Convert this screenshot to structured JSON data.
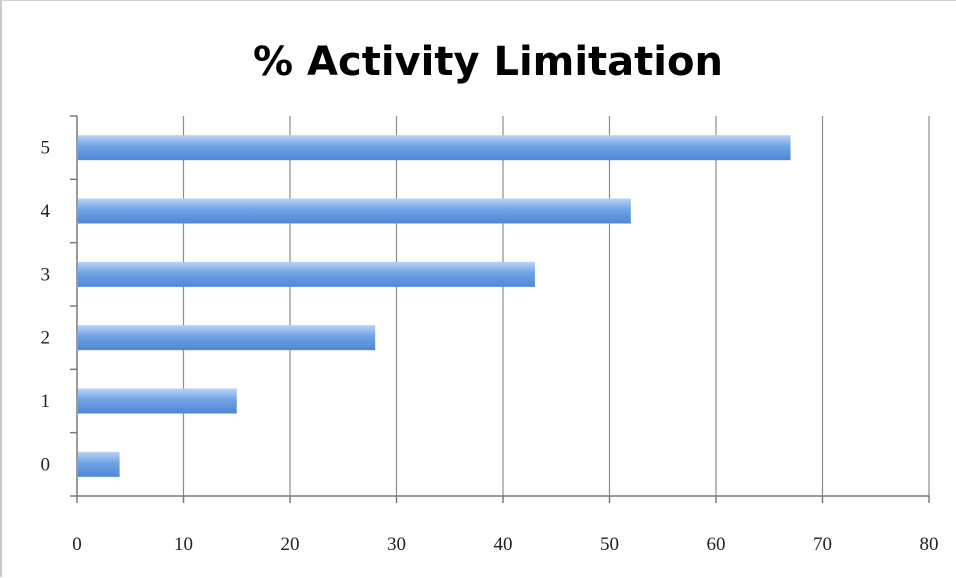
{
  "chart_data": {
    "type": "bar",
    "orientation": "horizontal",
    "title": "% Activity Limitation",
    "xlabel": "",
    "ylabel": "",
    "categories": [
      "0",
      "1",
      "2",
      "3",
      "4",
      "5"
    ],
    "values": [
      4,
      15,
      28,
      43,
      52,
      67
    ],
    "xlim": [
      0,
      80
    ],
    "xticks": [
      0,
      10,
      20,
      30,
      40,
      50,
      60,
      70,
      80
    ],
    "grid": "vertical",
    "legend": "none",
    "bar_color": "#6fa3e6",
    "bar_color_light": "#b9d3f5",
    "bar_color_dark": "#4f86d6"
  }
}
